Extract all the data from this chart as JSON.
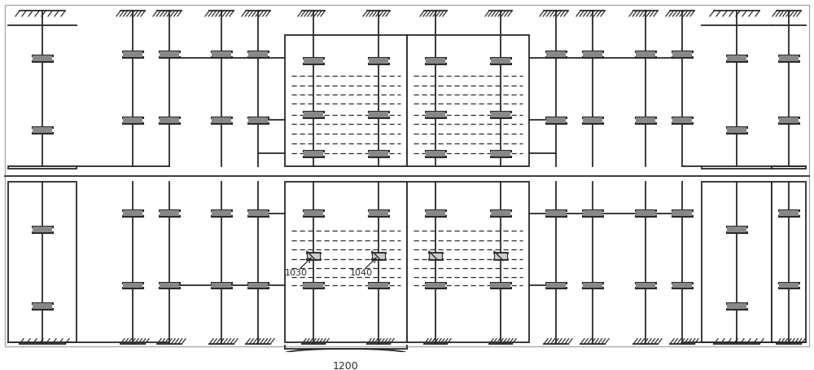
{
  "bg_color": "#ffffff",
  "line_color": "#2a2a2a",
  "fig_width": 10.0,
  "fig_height": 4.54,
  "lw": 1.3,
  "thin": 0.9
}
